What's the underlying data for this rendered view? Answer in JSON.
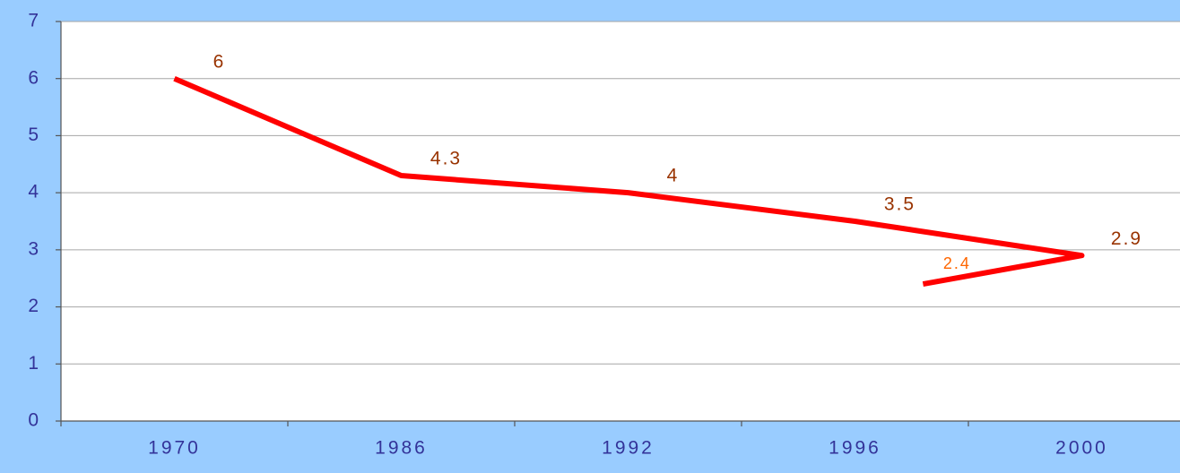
{
  "chart_data": {
    "type": "line",
    "categories": [
      "1970",
      "1986",
      "1992",
      "1996",
      "2000",
      null
    ],
    "series": [
      {
        "color": "#ff0000",
        "values": [
          6,
          4.3,
          4,
          3.5,
          2.9,
          2.4
        ]
      }
    ],
    "label_colors": [
      "#993300",
      "#993300",
      "#993300",
      "#993300",
      "#993300",
      "#ff6600"
    ],
    "ylim": [
      0,
      7
    ],
    "yticks": [
      0,
      1,
      2,
      3,
      4,
      5,
      6,
      7
    ],
    "grid": true
  }
}
